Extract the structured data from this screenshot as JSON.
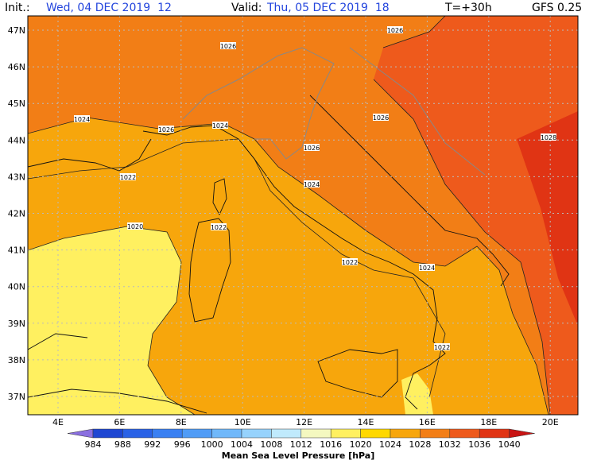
{
  "header": {
    "init_label": "Init.:",
    "init": "Wed, 04 DEC 2019  12",
    "valid_label": "Valid:",
    "valid": "Thu, 05 DEC 2019  18",
    "step": "T=+30h",
    "model": "GFS 0.25"
  },
  "map": {
    "lat_labels": [
      "47N",
      "46N",
      "45N",
      "44N",
      "43N",
      "42N",
      "41N",
      "40N",
      "39N",
      "38N",
      "37N"
    ],
    "lon_labels": [
      "4E",
      "6E",
      "8E",
      "10E",
      "12E",
      "14E",
      "16E",
      "18E",
      "20E"
    ],
    "contour_labels": [
      "1026",
      "1026",
      "1024",
      "1026",
      "1024",
      "1026",
      "1026",
      "1028",
      "1022",
      "1024",
      "1020",
      "1022",
      "1022",
      "1024",
      "1022"
    ]
  },
  "colorbar": {
    "levels": [
      984,
      988,
      992,
      996,
      1000,
      1004,
      1008,
      1012,
      1016,
      1020,
      1024,
      1028,
      1032,
      1036,
      1040
    ],
    "colors": [
      "#8a6fe0",
      "#1e46d2",
      "#2a62e6",
      "#3a80f2",
      "#509cf6",
      "#70b8fa",
      "#96d2fc",
      "#c0eafc",
      "#f4f8c0",
      "#fff060",
      "#ffd800",
      "#f7a60c",
      "#f27e16",
      "#ee5a1c",
      "#e03414",
      "#c81414"
    ],
    "title": "Mean Sea Level Pressure [hPa]"
  }
}
